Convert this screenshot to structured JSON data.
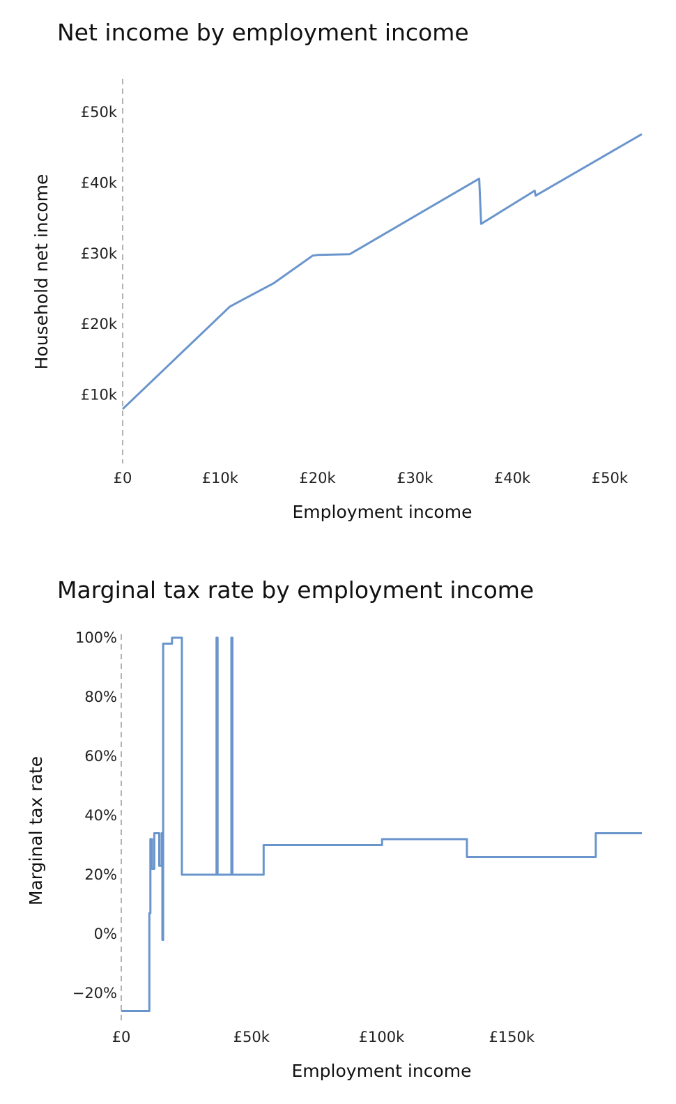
{
  "chart_data": [
    {
      "type": "line",
      "title": "Net income by employment income",
      "xlabel": "Employment income",
      "ylabel": "Household net income",
      "xlim": [
        0,
        53300
      ],
      "ylim": [
        0,
        55000
      ],
      "x_ticks": [
        {
          "value": 0,
          "label": "£0"
        },
        {
          "value": 10000,
          "label": "£10k"
        },
        {
          "value": 20000,
          "label": "£20k"
        },
        {
          "value": 30000,
          "label": "£30k"
        },
        {
          "value": 40000,
          "label": "£40k"
        },
        {
          "value": 50000,
          "label": "£50k"
        }
      ],
      "y_ticks": [
        {
          "value": 10000,
          "label": "£10k"
        },
        {
          "value": 20000,
          "label": "£20k"
        },
        {
          "value": 30000,
          "label": "£30k"
        },
        {
          "value": 40000,
          "label": "£40k"
        },
        {
          "value": 50000,
          "label": "£50k"
        }
      ],
      "grid": false,
      "series": [
        {
          "x": [
            0,
            11000,
            12500,
            15500,
            19500,
            20000,
            23300,
            36600,
            36800,
            42300,
            42400,
            53300
          ],
          "y": [
            8000,
            22500,
            23600,
            25800,
            29700,
            29800,
            29900,
            40600,
            34200,
            38900,
            38200,
            46900
          ]
        }
      ]
    },
    {
      "type": "line",
      "title": "Marginal tax rate by employment income",
      "xlabel": "Employment income",
      "ylabel": "Marginal tax rate",
      "xlim": [
        0,
        200000
      ],
      "ylim": [
        -28,
        100
      ],
      "x_ticks": [
        {
          "value": 0,
          "label": "£0"
        },
        {
          "value": 50000,
          "label": "£50k"
        },
        {
          "value": 100000,
          "label": "£100k"
        },
        {
          "value": 150000,
          "label": "£150k"
        }
      ],
      "y_ticks": [
        {
          "value": 100,
          "label": "100%"
        },
        {
          "value": 80,
          "label": "80%"
        },
        {
          "value": 60,
          "label": "60%"
        },
        {
          "value": 40,
          "label": "40%"
        },
        {
          "value": 20,
          "label": "20%"
        },
        {
          "value": 0,
          "label": "0%"
        },
        {
          "value": -20,
          "label": "−20%"
        }
      ],
      "grid": false,
      "series": [
        {
          "x": [
            0,
            10800,
            10800,
            11200,
            11200,
            11800,
            11800,
            12700,
            12700,
            14600,
            14600,
            15500,
            15500,
            15800,
            15800,
            16100,
            16100,
            19500,
            19500,
            23100,
            23100,
            23300,
            23300,
            36600,
            36600,
            37000,
            37000,
            42300,
            42300,
            42700,
            42700,
            54700,
            54700,
            100200,
            100200,
            132800,
            132800,
            182300,
            182300,
            200000
          ],
          "y": [
            -26,
            -26,
            7,
            7,
            32,
            32,
            22,
            22,
            34,
            34,
            23,
            23,
            34,
            34,
            -2,
            -2,
            98,
            98,
            100,
            100,
            100,
            100,
            20,
            20,
            100,
            100,
            20,
            20,
            100,
            100,
            20,
            20,
            30,
            30,
            32,
            32,
            26,
            26,
            34,
            34
          ]
        }
      ]
    }
  ]
}
